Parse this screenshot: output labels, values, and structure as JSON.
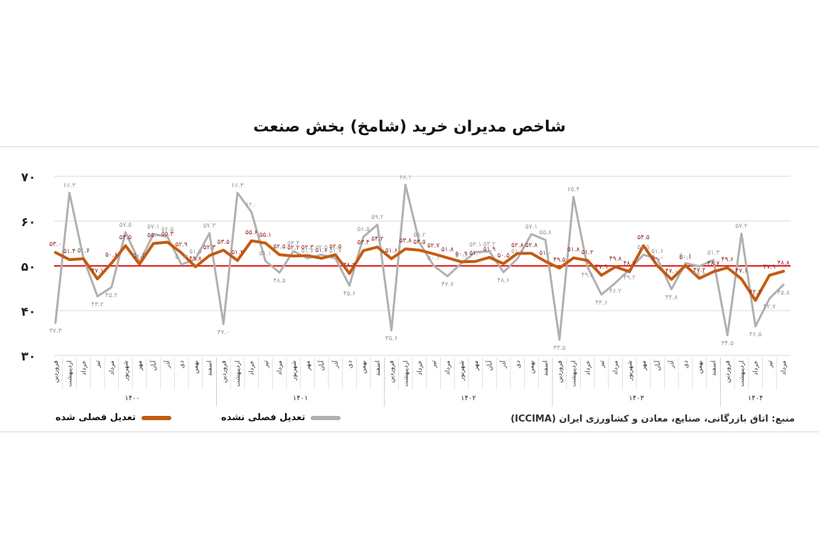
{
  "chart_data": {
    "type": "line",
    "title": "شاخص مدیران خرید (شامخ) بخش صنعت",
    "ylim": [
      30,
      70
    ],
    "y_ticks": [
      "۷۰",
      "۶۰",
      "۵۰",
      "۴۰",
      "۳۰"
    ],
    "y_tick_values": [
      70,
      60,
      50,
      40,
      30
    ],
    "reference_line": 50,
    "months": [
      "فروردین",
      "اردیبهشت",
      "خرداد",
      "تیر",
      "مرداد",
      "شهریور",
      "مهر",
      "آبان",
      "آذر",
      "دی",
      "بهمن",
      "اسفند"
    ],
    "years": [
      "۱۴۰۰",
      "۱۴۰۱",
      "۱۴۰۲",
      "۱۴۰۳",
      "۱۴۰۴"
    ],
    "x": [
      "۱۴۰۰ فروردین",
      "۱۴۰۰ اردیبهشت",
      "۱۴۰۰ خرداد",
      "۱۴۰۰ تیر",
      "۱۴۰۰ مرداد",
      "۱۴۰۰ شهریور",
      "۱۴۰۰ مهر",
      "۱۴۰۰ آبان",
      "۱۴۰۰ آذر",
      "۱۴۰۰ دی",
      "۱۴۰۰ بهمن",
      "۱۴۰۰ اسفند",
      "۱۴۰۱ فروردین",
      "۱۴۰۱ اردیبهشت",
      "۱۴۰۱ خرداد",
      "۱۴۰۱ تیر",
      "۱۴۰۱ مرداد",
      "۱۴۰۱ شهریور",
      "۱۴۰۱ مهر",
      "۱۴۰۱ آبان",
      "۱۴۰۱ آذر",
      "۱۴۰۱ دی",
      "۱۴۰۱ بهمن",
      "۱۴۰۱ اسفند",
      "۱۴۰۲ فروردین",
      "۱۴۰۲ اردیبهشت",
      "۱۴۰۲ خرداد",
      "۱۴۰۲ تیر",
      "۱۴۰۲ مرداد",
      "۱۴۰۲ شهریور",
      "۱۴۰۲ مهر",
      "۱۴۰۲ آبان",
      "۱۴۰۲ آذر",
      "۱۴۰۲ دی",
      "۱۴۰۲ بهمن",
      "۱۴۰۲ اسفند",
      "۱۴۰۳ فروردین",
      "۱۴۰۳ اردیبهشت",
      "۱۴۰۳ خرداد",
      "۱۴۰۳ تیر",
      "۱۴۰۳ مرداد",
      "۱۴۰۳ شهریور",
      "۱۴۰۳ مهر",
      "۱۴۰۳ آبان",
      "۱۴۰۳ آذر",
      "۱۴۰۳ دی",
      "۱۴۰۳ بهمن",
      "۱۴۰۳ اسفند",
      "۱۴۰۴ فروردین",
      "۱۴۰۴ اردیبهشت",
      "۱۴۰۴ خرداد",
      "۱۴۰۴ تیر",
      "۱۴۰۴ مرداد"
    ],
    "series": [
      {
        "name": "تعدیل فصلی شده",
        "color": "#c55a11",
        "values": [
          53.0,
          51.4,
          51.6,
          47.1,
          50.6,
          54.5,
          50.4,
          55.0,
          55.3,
          52.9,
          49.8,
          52.3,
          53.5,
          51.2,
          55.6,
          55.1,
          52.5,
          52.2,
          52.3,
          51.7,
          52.5,
          48.3,
          53.4,
          54.2,
          51.6,
          53.8,
          53.5,
          52.7,
          51.8,
          50.9,
          51.0,
          51.9,
          50.5,
          52.8,
          52.8,
          51.0,
          49.5,
          51.8,
          51.2,
          47.9,
          49.8,
          48.7,
          54.5,
          50.0,
          47.0,
          50.1,
          47.2,
          48.7,
          49.6,
          47.1,
          42.3,
          47.9,
          48.8
        ],
        "labels": [
          "۵۳.۰",
          "۵۱.۴",
          "۵۱.۶",
          "۴۷.۱",
          "۵۰.۶",
          "۵۴.۵",
          "۵۰.۴",
          "۵۵.۰",
          "۵۵.۳",
          "۵۲.۹",
          "۴۹.۸",
          "۵۲.۳",
          "۵۳.۵",
          "۵۱.۲",
          "۵۵.۶",
          "۵۵.۱",
          "۵۲.۵",
          "۵۲.۲",
          "۵۲.۳",
          "۵۱.۷",
          "۵۲.۵",
          "۴۸.۳",
          "۵۳.۴",
          "۵۴.۲",
          "۵۱.۶",
          "۵۳.۸",
          "۵۳.۵",
          "۵۲.۷",
          "۵۱.۸",
          "۵۰.۹",
          "۵۱.۰",
          "۵۱.۹",
          "۵۰.۵",
          "۵۲.۸",
          "۵۲.۸",
          "۵۱.۰",
          "۴۹.۵",
          "۵۱.۸",
          "۵۱.۲",
          "۴۷.۹",
          "۴۹.۸",
          "۴۸.۷",
          "۵۴.۵",
          "۵۰.۰",
          "۴۷.۰",
          "۵۰.۱",
          "۴۷.۲",
          "۴۸.۷",
          "۴۹.۶",
          "۴۷.۱",
          "۴۲.۳",
          "۴۷.۹",
          "۴۸.۸"
        ]
      },
      {
        "name": "تعدیل فصلی نشده",
        "color": "#b0b0b0",
        "values": [
          37.3,
          66.3,
          51.7,
          43.2,
          45.2,
          57.5,
          50.8,
          57.1,
          56.5,
          50.3,
          51.5,
          57.3,
          37.0,
          66.3,
          62.0,
          51.1,
          48.5,
          53.3,
          51.7,
          52.5,
          51.7,
          45.6,
          56.5,
          59.2,
          35.6,
          68.1,
          55.2,
          50.1,
          47.7,
          50.6,
          53.1,
          53.2,
          48.6,
          51.6,
          57.1,
          55.8,
          33.5,
          65.4,
          49.8,
          43.6,
          46.2,
          49.2,
          52.5,
          51.6,
          44.8,
          50.6,
          49.9,
          51.3,
          34.5,
          57.2,
          36.5,
          42.7,
          45.8
        ],
        "labels": [
          "۳۷.۳",
          "۶۶.۳",
          "۵۱.۷",
          "۴۳.۲",
          "۴۵.۲",
          "۵۷.۵",
          "۵۰.۸",
          "۵۷.۱",
          "۵۶.۵",
          "۵۰.۳",
          "۵۱.۵",
          "۵۷.۳",
          "۳۷.۰",
          "۶۶.۳",
          "۶۲.۰",
          "۵۱.۱",
          "۴۸.۵",
          "۵۳.۳",
          "۵۱.۷",
          "۵۲.۵",
          "۵۱.۷",
          "۴۵.۶",
          "۵۶.۵",
          "۵۹.۲",
          "۳۵.۶",
          "۶۸.۱",
          "۵۵.۲",
          "۵۰.۱",
          "۴۷.۷",
          "۵۰.۶",
          "۵۳.۱",
          "۵۳.۲",
          "۴۸.۶",
          "۵۱.۶",
          "۵۷.۱",
          "۵۵.۸",
          "۳۳.۵",
          "۶۵.۴",
          "۴۹.۸",
          "۴۳.۶",
          "۴۶.۲",
          "۴۹.۲",
          "۵۲.۵",
          "۵۱.۶",
          "۴۴.۸",
          "۵۰.۶",
          "۴۹.۹",
          "۵۱.۳",
          "۳۴.۵",
          "۵۷.۲",
          "۳۶.۵",
          "۴۲.۷",
          "۴۵.۸"
        ]
      }
    ],
    "legend": {
      "position": "bottom-left",
      "items": [
        {
          "label": "تعدیل فصلی شده",
          "color": "#c55a11"
        },
        {
          "label": "تعدیل فصلی نشده",
          "color": "#b0b0b0"
        }
      ]
    },
    "grid": true,
    "source": "منبع: اتاق بازرگانی، صنایع، معادن و کشاورزی ایران (ICCIMA)"
  }
}
